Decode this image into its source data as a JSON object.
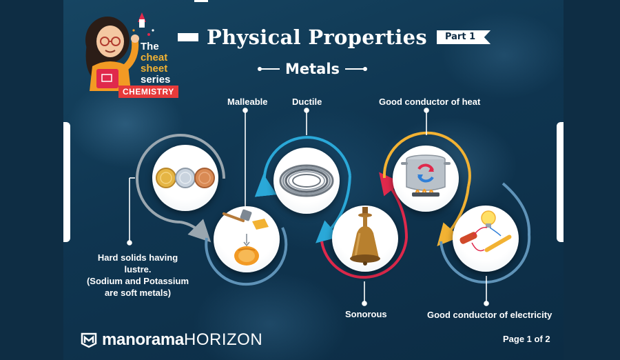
{
  "title": "Physical Properties",
  "part": "Part 1",
  "subtitle": "Metals",
  "series_logo": {
    "line1": "The",
    "line2": "cheat",
    "line3": "sheet",
    "line4": "series",
    "subject": "CHEMISTRY"
  },
  "properties": {
    "hard": "Hard solids having lustre.",
    "hard_note_1": "(Sodium and Potassium",
    "hard_note_2": "are soft metals)",
    "malleable": "Malleable",
    "ductile": "Ductile",
    "sonorous": "Sonorous",
    "heat": "Good conductor of heat",
    "electricity": "Good conductor of electricity"
  },
  "icons": {
    "coins": "coins-icon",
    "hammer": "hammer-metal-sheet-icon",
    "wire": "wire-coil-icon",
    "bell": "bell-icon",
    "pot": "heated-pot-icon",
    "bulb": "circuit-bulb-icon"
  },
  "colors": {
    "background": "#0f3550",
    "ring_grey": "#9aa7b0",
    "ring_blue": "#2aa8d8",
    "ring_red": "#e0294c",
    "ring_yellow": "#f2b233",
    "ring_teal": "#5f93b8",
    "chemistry_red": "#e63a3a"
  },
  "footer": {
    "brand_a": "manorama",
    "brand_b": "HORIZON",
    "page": "Page 1 of 2"
  }
}
